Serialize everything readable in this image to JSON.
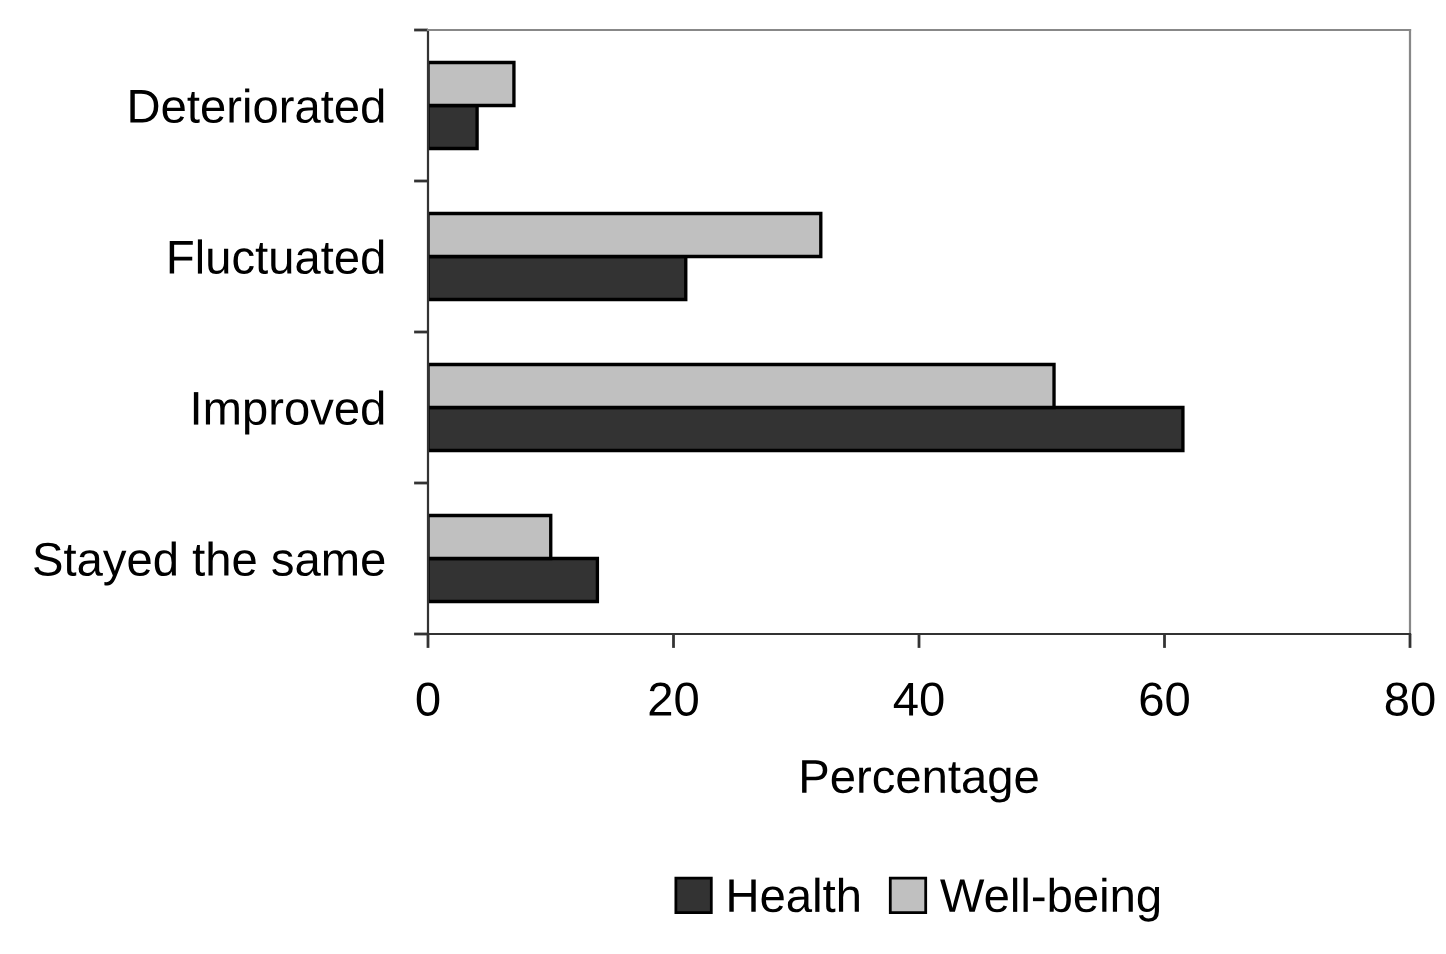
{
  "chart_data": {
    "type": "bar",
    "orientation": "horizontal",
    "categories": [
      "Deteriorated",
      "Fluctuated",
      "Improved",
      "Stayed the same"
    ],
    "series": [
      {
        "name": "Health",
        "color": "#333333",
        "values": [
          4,
          21,
          61.5,
          13.8
        ]
      },
      {
        "name": "Well-being",
        "color": "#c0c0c0",
        "values": [
          7,
          32,
          51,
          10
        ]
      }
    ],
    "xlim": [
      0,
      80
    ],
    "xticks": [
      0,
      20,
      40,
      60,
      80
    ],
    "xlabel": "Percentage",
    "legend": "bottom"
  }
}
